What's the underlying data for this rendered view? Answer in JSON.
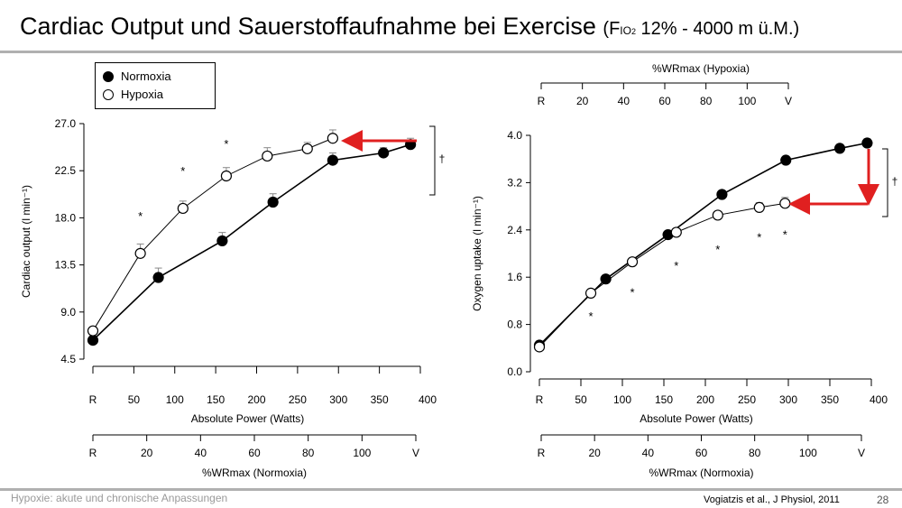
{
  "slide": {
    "title_main": "Cardiac Output und Sauerstoffaufnahme bei Exercise",
    "title_paren_open": "(F",
    "title_sub": "IO",
    "title_sub2": "2",
    "title_rest": " 12%  -  4000 m ü.M.)",
    "footer_left": "Hypoxie: akute und chronische Anpassungen",
    "footer_cite": "Vogiatzis et al., J Physiol, 2011",
    "page_number": "28"
  },
  "legend": {
    "normoxia": "Normoxia",
    "hypoxia": "Hypoxia"
  },
  "colors": {
    "normoxia": "#000000",
    "hypoxia": "#ffffff",
    "arrow": "#e02020",
    "errorbar": "#888888"
  },
  "chart_data": [
    {
      "type": "line",
      "ylabel": "Cardiac output (l min⁻¹)",
      "xlabel": "Absolute Power (Watts)",
      "x_ticks": [
        "R",
        "50",
        "100",
        "150",
        "200",
        "250",
        "300",
        "350",
        "400"
      ],
      "y_ticks": [
        "4.5",
        "9.0",
        "13.5",
        "18.0",
        "22.5",
        "27.0"
      ],
      "ylim": [
        4.5,
        27.0
      ],
      "xlim": [
        0,
        400
      ],
      "secondary_xlabel": "%WRmax (Normoxia)",
      "secondary_x_ticks": [
        "R",
        "20",
        "40",
        "60",
        "80",
        "100",
        "V"
      ],
      "series": [
        {
          "name": "Normoxia",
          "marker": "filled",
          "x": [
            0,
            80,
            158,
            220,
            293,
            355,
            388
          ],
          "y": [
            6.3,
            12.3,
            15.8,
            19.5,
            23.5,
            24.2,
            25.0
          ],
          "err": [
            0,
            0.9,
            0.8,
            0.8,
            0.7,
            0.5,
            0.6
          ]
        },
        {
          "name": "Hypoxia",
          "marker": "open",
          "x": [
            0,
            58,
            110,
            163,
            213,
            262,
            293
          ],
          "y": [
            7.2,
            14.6,
            18.9,
            22.0,
            23.9,
            24.6,
            25.6
          ],
          "err": [
            0,
            0.9,
            0.7,
            0.8,
            0.8,
            0.6,
            0.8
          ]
        }
      ],
      "annotations": [
        {
          "text": "*",
          "x": 58,
          "y": 18.2
        },
        {
          "text": "*",
          "x": 110,
          "y": 22.5
        },
        {
          "text": "*",
          "x": 163,
          "y": 25.1
        },
        {
          "text": "†",
          "side": "right"
        }
      ]
    },
    {
      "type": "line",
      "ylabel": "Oxygen uptake (l min⁻¹)",
      "xlabel": "Absolute Power (Watts)",
      "x_ticks": [
        "R",
        "50",
        "100",
        "150",
        "200",
        "250",
        "300",
        "350",
        "400"
      ],
      "y_ticks": [
        "0.0",
        "0.8",
        "1.6",
        "2.4",
        "3.2",
        "4.0"
      ],
      "ylim": [
        0.0,
        4.0
      ],
      "xlim": [
        0,
        400
      ],
      "top_axis_label": "%WRmax (Hypoxia)",
      "top_x_ticks": [
        "R",
        "20",
        "40",
        "60",
        "80",
        "100",
        "V"
      ],
      "secondary_xlabel": "%WRmax (Normoxia)",
      "secondary_x_ticks": [
        "R",
        "20",
        "40",
        "60",
        "80",
        "100",
        "V"
      ],
      "series": [
        {
          "name": "Normoxia",
          "marker": "filled",
          "x": [
            0,
            80,
            155,
            220,
            297,
            362,
            395
          ],
          "y": [
            0.45,
            1.57,
            2.32,
            3.0,
            3.58,
            3.78,
            3.87
          ],
          "err": [
            0,
            0.05,
            0.05,
            0.05,
            0.05,
            0.06,
            0.07
          ]
        },
        {
          "name": "Hypoxia",
          "marker": "open",
          "x": [
            0,
            62,
            112,
            165,
            215,
            265,
            296
          ],
          "y": [
            0.42,
            1.33,
            1.86,
            2.36,
            2.65,
            2.78,
            2.85
          ],
          "err": [
            0,
            0.04,
            0.04,
            0.05,
            0.06,
            0.08,
            0.1
          ]
        }
      ],
      "annotations": [
        {
          "text": "*",
          "x": 62,
          "y": 0.95
        },
        {
          "text": "*",
          "x": 112,
          "y": 1.35
        },
        {
          "text": "*",
          "x": 165,
          "y": 1.8
        },
        {
          "text": "*",
          "x": 215,
          "y": 2.08
        },
        {
          "text": "*",
          "x": 265,
          "y": 2.28
        },
        {
          "text": "*",
          "x": 296,
          "y": 2.33
        },
        {
          "text": "†",
          "side": "right"
        }
      ]
    }
  ]
}
